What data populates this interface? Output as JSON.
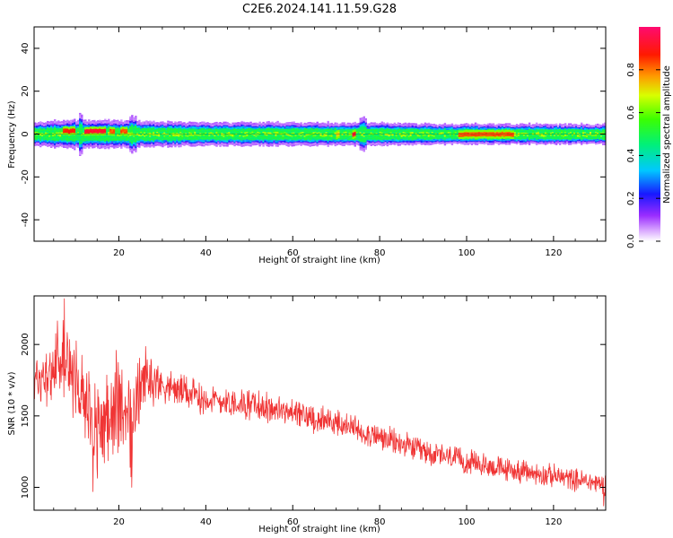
{
  "title": "C2E6.2024.141.11.59.G28",
  "chart_data": [
    {
      "type": "heatmap",
      "xlabel": "Height of straight line (km)",
      "ylabel": "Frequency (Hz)",
      "xlim": [
        0.5,
        132
      ],
      "ylim": [
        -50,
        50
      ],
      "xticks": [
        20,
        40,
        60,
        80,
        100,
        120
      ],
      "yticks": [
        -40,
        -20,
        0,
        20,
        40
      ],
      "colorbar": {
        "label": "Normalized spectral amplitude",
        "range": [
          0,
          1
        ],
        "ticks": [
          0.0,
          0.2,
          0.4,
          0.6,
          0.8
        ],
        "colormap": "rainbow (white-violet, blue, cyan, green, yellow, orange, red, magenta)"
      },
      "band": {
        "description": "Narrow band of spectral energy centered near 0 Hz across all heights",
        "center_hz": 0,
        "halfwidth_hz_profile": [
          {
            "x": 0.5,
            "halfwidth": 4
          },
          {
            "x": 10,
            "halfwidth": 5
          },
          {
            "x": 22,
            "halfwidth": 4.5
          },
          {
            "x": 40,
            "halfwidth": 4
          },
          {
            "x": 75,
            "halfwidth": 4
          },
          {
            "x": 100,
            "halfwidth": 3.5
          },
          {
            "x": 132,
            "halfwidth": 3.5
          }
        ],
        "peaks": [
          {
            "x_start": 7,
            "x_end": 10,
            "freq": 1.5,
            "amplitude": 0.85
          },
          {
            "x_start": 12,
            "x_end": 17,
            "freq": 1.5,
            "amplitude": 0.9
          },
          {
            "x_start": 18,
            "x_end": 19,
            "freq": 1.5,
            "amplitude": 0.8
          },
          {
            "x_start": 20.5,
            "x_end": 22,
            "freq": 1.5,
            "amplitude": 0.8
          },
          {
            "x_start": 70,
            "x_end": 71,
            "freq": 0,
            "amplitude": 0.7
          },
          {
            "x_start": 73.5,
            "x_end": 74.5,
            "freq": 0,
            "amplitude": 0.9
          },
          {
            "x_start": 98,
            "x_end": 111,
            "freq": 0,
            "amplitude": 0.8
          }
        ]
      }
    },
    {
      "type": "line",
      "xlabel": "Height of straight line (km)",
      "ylabel": "SNR (10 * v/v)",
      "xlim": [
        0.5,
        132
      ],
      "ylim": [
        840,
        2340
      ],
      "xticks": [
        20,
        40,
        60,
        80,
        100,
        120
      ],
      "yticks": [
        1000,
        1500,
        2000
      ],
      "series": [
        {
          "color": "#f03434",
          "trend": [
            {
              "x": 0.5,
              "y": 1750
            },
            {
              "x": 5,
              "y": 1800
            },
            {
              "x": 8,
              "y": 1850
            },
            {
              "x": 12,
              "y": 1600
            },
            {
              "x": 15,
              "y": 1450
            },
            {
              "x": 20,
              "y": 1550
            },
            {
              "x": 23,
              "y": 1500
            },
            {
              "x": 26,
              "y": 1780
            },
            {
              "x": 30,
              "y": 1720
            },
            {
              "x": 40,
              "y": 1620
            },
            {
              "x": 50,
              "y": 1580
            },
            {
              "x": 60,
              "y": 1520
            },
            {
              "x": 70,
              "y": 1450
            },
            {
              "x": 80,
              "y": 1350
            },
            {
              "x": 90,
              "y": 1250
            },
            {
              "x": 100,
              "y": 1180
            },
            {
              "x": 110,
              "y": 1120
            },
            {
              "x": 120,
              "y": 1080
            },
            {
              "x": 132,
              "y": 1020
            }
          ],
          "noise_amplitude": [
            {
              "x": 0.5,
              "a": 220
            },
            {
              "x": 8,
              "a": 300
            },
            {
              "x": 15,
              "a": 350
            },
            {
              "x": 23,
              "a": 350
            },
            {
              "x": 30,
              "a": 140
            },
            {
              "x": 60,
              "a": 120
            },
            {
              "x": 100,
              "a": 100
            },
            {
              "x": 132,
              "a": 90
            }
          ],
          "extremes": [
            {
              "x": 7.5,
              "y": 2320
            },
            {
              "x": 14,
              "y": 970
            },
            {
              "x": 23,
              "y": 1000
            },
            {
              "x": 131.5,
              "y": 870
            }
          ]
        }
      ]
    }
  ]
}
